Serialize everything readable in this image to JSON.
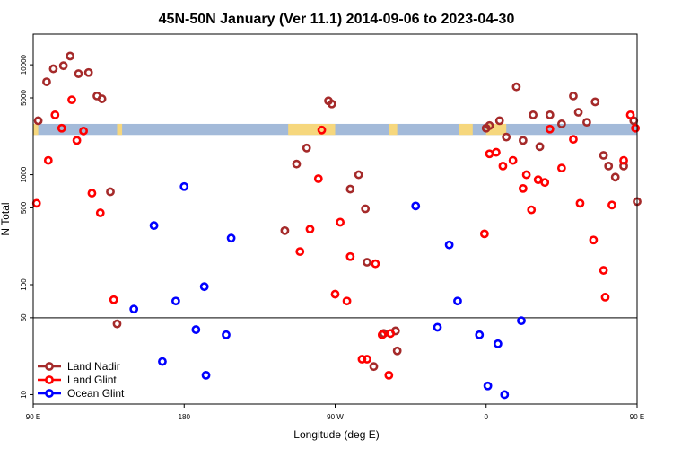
{
  "chart_data": {
    "type": "scatter",
    "title": "45N-50N January (Ver 11.1)   2014-09-06 to 2023-04-30",
    "xlabel": "Longitude (deg E)",
    "ylabel": "N Total",
    "x_scale": "longitude, wraps from 90 E eastward through 180 to 90 E",
    "xlim": [
      90,
      450
    ],
    "xticks": [
      {
        "value": 90,
        "label": "90 E"
      },
      {
        "value": 180,
        "label": "180"
      },
      {
        "value": 270,
        "label": "90 W"
      },
      {
        "value": 360,
        "label": "0"
      },
      {
        "value": 450,
        "label": "90 E"
      },
      {
        "value": 540,
        "label": "180"
      }
    ],
    "y_scale": "log",
    "ylim": [
      8.2,
      19000
    ],
    "yticks": [
      {
        "value": 10,
        "label": "10"
      },
      {
        "value": 50,
        "label": "50"
      },
      {
        "value": 100,
        "label": "100"
      },
      {
        "value": 500,
        "label": "500"
      },
      {
        "value": 1000,
        "label": "1000"
      },
      {
        "value": 5000,
        "label": "5000"
      },
      {
        "value": 10000,
        "label": "10000"
      }
    ],
    "reference_line": 50,
    "land_band": {
      "y_range": [
        2300,
        2900
      ],
      "land_color": "#f6d77d",
      "ocean_color": "#a3bad9",
      "land_segments": [
        [
          90,
          93
        ],
        [
          140,
          143
        ],
        [
          242,
          270
        ],
        [
          302,
          307
        ],
        [
          344,
          352
        ],
        [
          360,
          362
        ],
        [
          361,
          372
        ],
        [
          460,
          484
        ],
        [
          500,
          524
        ],
        [
          545,
          550
        ],
        [
          566,
          570
        ]
      ]
    },
    "legend_position": "bottom-left",
    "series": [
      {
        "name": "Land Nadir",
        "color": "#a52a2a",
        "points": [
          [
            93,
            3100
          ],
          [
            98,
            7000
          ],
          [
            102,
            9200
          ],
          [
            108,
            9800
          ],
          [
            112,
            12000
          ],
          [
            117,
            8300
          ],
          [
            123,
            8500
          ],
          [
            128,
            5200
          ],
          [
            131,
            4900
          ],
          [
            140,
            44
          ],
          [
            136,
            700
          ],
          [
            240,
            310
          ],
          [
            247,
            1250
          ],
          [
            253,
            1750
          ],
          [
            268,
            4400
          ],
          [
            266,
            4700
          ],
          [
            279,
            740
          ],
          [
            284,
            1000
          ],
          [
            288,
            490
          ],
          [
            293,
            18
          ],
          [
            299,
            36
          ],
          [
            306,
            38
          ],
          [
            307,
            25
          ],
          [
            289,
            160
          ],
          [
            360,
            2650
          ],
          [
            362,
            2800
          ],
          [
            368,
            3100
          ],
          [
            372,
            2200
          ],
          [
            378,
            6300
          ],
          [
            382,
            2050
          ],
          [
            388,
            3500
          ],
          [
            392,
            1800
          ],
          [
            398,
            3500
          ],
          [
            405,
            2900
          ],
          [
            412,
            5200
          ],
          [
            415,
            3700
          ],
          [
            420,
            3000
          ],
          [
            425,
            4600
          ],
          [
            430,
            1500
          ],
          [
            433,
            1200
          ],
          [
            437,
            950
          ],
          [
            442,
            1200
          ],
          [
            448,
            3100
          ],
          [
            450,
            570
          ],
          [
            453,
            7000
          ],
          [
            455,
            6000
          ],
          [
            458,
            7000
          ],
          [
            460,
            9300
          ],
          [
            463,
            9800
          ],
          [
            468,
            12000
          ],
          [
            470,
            8300
          ],
          [
            477,
            8500
          ],
          [
            482,
            5200
          ],
          [
            486,
            4900
          ],
          [
            490,
            44
          ],
          [
            486,
            700
          ]
        ]
      },
      {
        "name": "Land Glint",
        "color": "#ff0000",
        "points": [
          [
            92,
            550
          ],
          [
            99,
            1350
          ],
          [
            103,
            3500
          ],
          [
            107,
            2650
          ],
          [
            113,
            4800
          ],
          [
            116,
            2050
          ],
          [
            120,
            2500
          ],
          [
            125,
            680
          ],
          [
            130,
            450
          ],
          [
            138,
            73
          ],
          [
            249,
            200
          ],
          [
            255,
            320
          ],
          [
            260,
            920
          ],
          [
            262,
            2550
          ],
          [
            270,
            82
          ],
          [
            273,
            370
          ],
          [
            277,
            71
          ],
          [
            279,
            180
          ],
          [
            286,
            21
          ],
          [
            289,
            21
          ],
          [
            294,
            155
          ],
          [
            298,
            35
          ],
          [
            302,
            15
          ],
          [
            303,
            36
          ],
          [
            359,
            290
          ],
          [
            362,
            1550
          ],
          [
            366,
            1600
          ],
          [
            370,
            1200
          ],
          [
            376,
            1350
          ],
          [
            382,
            750
          ],
          [
            384,
            1000
          ],
          [
            387,
            480
          ],
          [
            391,
            900
          ],
          [
            395,
            850
          ],
          [
            398,
            2600
          ],
          [
            405,
            1150
          ],
          [
            412,
            2100
          ],
          [
            416,
            550
          ],
          [
            424,
            255
          ],
          [
            430,
            135
          ],
          [
            431,
            77
          ],
          [
            435,
            530
          ],
          [
            442,
            1350
          ],
          [
            446,
            3500
          ],
          [
            449,
            2650
          ],
          [
            456,
            4800
          ],
          [
            460,
            2050
          ],
          [
            464,
            2500
          ],
          [
            469,
            680
          ],
          [
            474,
            450
          ],
          [
            477,
            73
          ]
        ]
      },
      {
        "name": "Ocean Glint",
        "color": "#0000ff",
        "points": [
          [
            150,
            60
          ],
          [
            162,
            345
          ],
          [
            167,
            20
          ],
          [
            175,
            71
          ],
          [
            180,
            780
          ],
          [
            187,
            39
          ],
          [
            192,
            96
          ],
          [
            193,
            15
          ],
          [
            205,
            35
          ],
          [
            208,
            265
          ],
          [
            318,
            520
          ],
          [
            331,
            41
          ],
          [
            338,
            230
          ],
          [
            343,
            71
          ],
          [
            356,
            35
          ],
          [
            361,
            12
          ],
          [
            367,
            29
          ],
          [
            371,
            10
          ],
          [
            381,
            47
          ],
          [
            474,
            60
          ],
          [
            486,
            345
          ]
        ]
      }
    ]
  }
}
